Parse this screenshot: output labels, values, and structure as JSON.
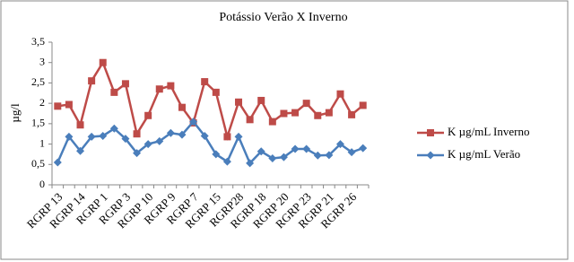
{
  "chart_data": {
    "type": "line",
    "title": "Potássio Verão X Inverno",
    "y_label": "µg/l",
    "categories": [
      "RGRP 13",
      null,
      "RGRP 14",
      null,
      "RGRP 1",
      null,
      "RGRP 3",
      null,
      "RGRP 10",
      null,
      "RGRP 9",
      null,
      "RGRP 7",
      null,
      "RGRP 15",
      null,
      "RGRP28",
      null,
      "RGRP 18",
      null,
      "RGRP 20",
      null,
      "RGRP 23",
      null,
      "RGRP 21",
      null,
      "RGRP 26",
      null
    ],
    "series": [
      {
        "name": "K µg/mL Inverno",
        "color": "#be4b48",
        "marker": "square",
        "values": [
          1.93,
          1.97,
          1.47,
          2.55,
          3.0,
          2.27,
          2.48,
          1.25,
          1.7,
          2.35,
          2.43,
          1.9,
          1.52,
          2.53,
          2.27,
          1.18,
          2.03,
          1.6,
          2.07,
          1.55,
          1.75,
          1.77,
          2.0,
          1.7,
          1.77,
          2.23,
          1.72,
          1.95
        ]
      },
      {
        "name": "K µg/mL Verão",
        "color": "#4a7ebb",
        "marker": "diamond",
        "values": [
          0.55,
          1.18,
          0.83,
          1.18,
          1.2,
          1.38,
          1.13,
          0.78,
          1.0,
          1.07,
          1.27,
          1.23,
          1.55,
          1.2,
          0.75,
          0.57,
          1.18,
          0.53,
          0.82,
          0.65,
          0.68,
          0.88,
          0.88,
          0.72,
          0.73,
          1.0,
          0.8,
          0.9
        ]
      }
    ],
    "ylim": [
      0,
      3.5
    ],
    "yticks": [
      0,
      {
        "value": 0.5,
        "label": "0,5"
      },
      1,
      {
        "value": 1.5,
        "label": "1,5"
      },
      2,
      {
        "value": 2.5,
        "label": "2,5"
      },
      3,
      {
        "value": 3.5,
        "label": "3,5"
      }
    ],
    "grid": false,
    "legend": "right"
  }
}
